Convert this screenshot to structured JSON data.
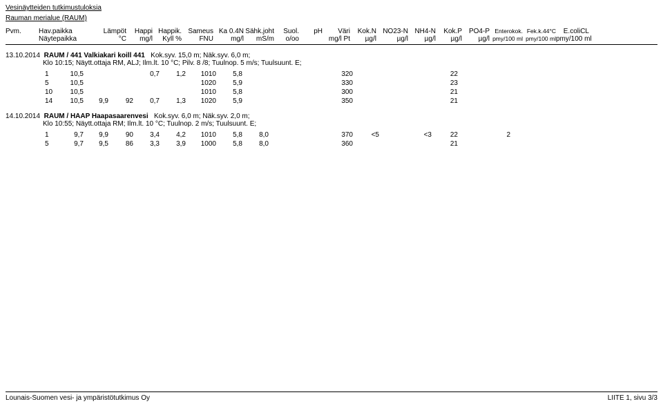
{
  "title1": "Vesinäytteiden tutkimustuloksia",
  "title2": "Rauman merialue (RAUM)",
  "header": {
    "row1": {
      "pvm": "Pvm.",
      "hav": "Hav.paikka",
      "lampo": "Lämpöt",
      "happi": "Happi",
      "happik": "Happik.",
      "sameus": "Sameus",
      "ka04n": "Ka 0.4N",
      "sahk": "Sähk.joht",
      "suol": "Suol.",
      "ph": "pH",
      "vari": "Väri",
      "kokn": "Kok.N",
      "no23": "NO23-N",
      "nh4": "NH4-N",
      "kokp": "Kok.P",
      "po4": "PO4-P",
      "entero": "Enterokok.",
      "fek": "Fek.k.44°C",
      "ecoli": "E.coliCL"
    },
    "row2": {
      "pvm": "",
      "hav": "Näytepaikka",
      "lampo": "°C",
      "happi": "mg/l",
      "happik": "Kyll %",
      "sameus": "FNU",
      "ka04n": "mg/l",
      "sahk": "mS/m",
      "suol": "o/oo",
      "ph": "",
      "vari": "mg/l Pt",
      "kokn": "µg/l",
      "no23": "µg/l",
      "nh4": "µg/l",
      "kokp": "µg/l",
      "po4": "µg/l",
      "entero": "pmy/100 ml",
      "fek": "pmy/100 ml",
      "ecoli": "pmy/100 ml"
    }
  },
  "sections": [
    {
      "date": "13.10.2014",
      "bold": "RAUM / 441  Valkiakari koill 441",
      "rest": "Kok.syv. 15,0 m; Näk.syv. 6,0 m;",
      "sub": "Klo 10:15; Näytt.ottaja RM, ALJ; Ilm.lt. 10 °C; Pilv. 8 /8; Tuulnop. 5 m/s; Tuulsuunt. E;",
      "rows": [
        {
          "d0": "1",
          "d1": "10,5",
          "d2": "",
          "d3": "",
          "d4": "0,7",
          "d5": "1,2",
          "d6": "1010",
          "d7": "5,8",
          "d8": "",
          "d9": "",
          "d10": "",
          "d11": "320",
          "d12": "",
          "d13": "",
          "d14": "",
          "d15": "22",
          "d16": "",
          "d17": ""
        },
        {
          "d0": "5",
          "d1": "10,5",
          "d2": "",
          "d3": "",
          "d4": "",
          "d5": "",
          "d6": "1020",
          "d7": "5,9",
          "d8": "",
          "d9": "",
          "d10": "",
          "d11": "330",
          "d12": "",
          "d13": "",
          "d14": "",
          "d15": "23",
          "d16": "",
          "d17": ""
        },
        {
          "d0": "10",
          "d1": "10,5",
          "d2": "",
          "d3": "",
          "d4": "",
          "d5": "",
          "d6": "1010",
          "d7": "5,8",
          "d8": "",
          "d9": "",
          "d10": "",
          "d11": "300",
          "d12": "",
          "d13": "",
          "d14": "",
          "d15": "21",
          "d16": "",
          "d17": ""
        },
        {
          "d0": "14",
          "d1": "10,5",
          "d2": "9,9",
          "d3": "92",
          "d4": "0,7",
          "d5": "1,3",
          "d6": "1020",
          "d7": "5,9",
          "d8": "",
          "d9": "",
          "d10": "",
          "d11": "350",
          "d12": "",
          "d13": "",
          "d14": "",
          "d15": "21",
          "d16": "",
          "d17": ""
        }
      ]
    },
    {
      "date": "14.10.2014",
      "bold": "RAUM / HAAP  Haapasaarenvesi",
      "rest": "Kok.syv. 6,0 m; Näk.syv. 2,0 m;",
      "sub": "Klo 10:55; Näytt.ottaja RM; Ilm.lt. 10 °C; Tuulnop. 2 m/s; Tuulsuunt. E;",
      "rows": [
        {
          "d0": "1",
          "d1": "9,7",
          "d2": "9,9",
          "d3": "90",
          "d4": "3,4",
          "d5": "4,2",
          "d6": "1010",
          "d7": "5,8",
          "d8": "8,0",
          "d9": "",
          "d10": "",
          "d11": "370",
          "d12": "<5",
          "d13": "",
          "d14": "<3",
          "d15": "22",
          "d16": "",
          "d17": "2"
        },
        {
          "d0": "5",
          "d1": "9,7",
          "d2": "9,5",
          "d3": "86",
          "d4": "3,3",
          "d5": "3,9",
          "d6": "1000",
          "d7": "5,8",
          "d8": "8,0",
          "d9": "",
          "d10": "",
          "d11": "360",
          "d12": "",
          "d13": "",
          "d14": "",
          "d15": "21",
          "d16": "",
          "d17": ""
        }
      ]
    }
  ],
  "footer": {
    "left": "Lounais-Suomen vesi- ja ympäristötutkimus Oy",
    "right": "LIITE 1, sivu 3/3"
  }
}
